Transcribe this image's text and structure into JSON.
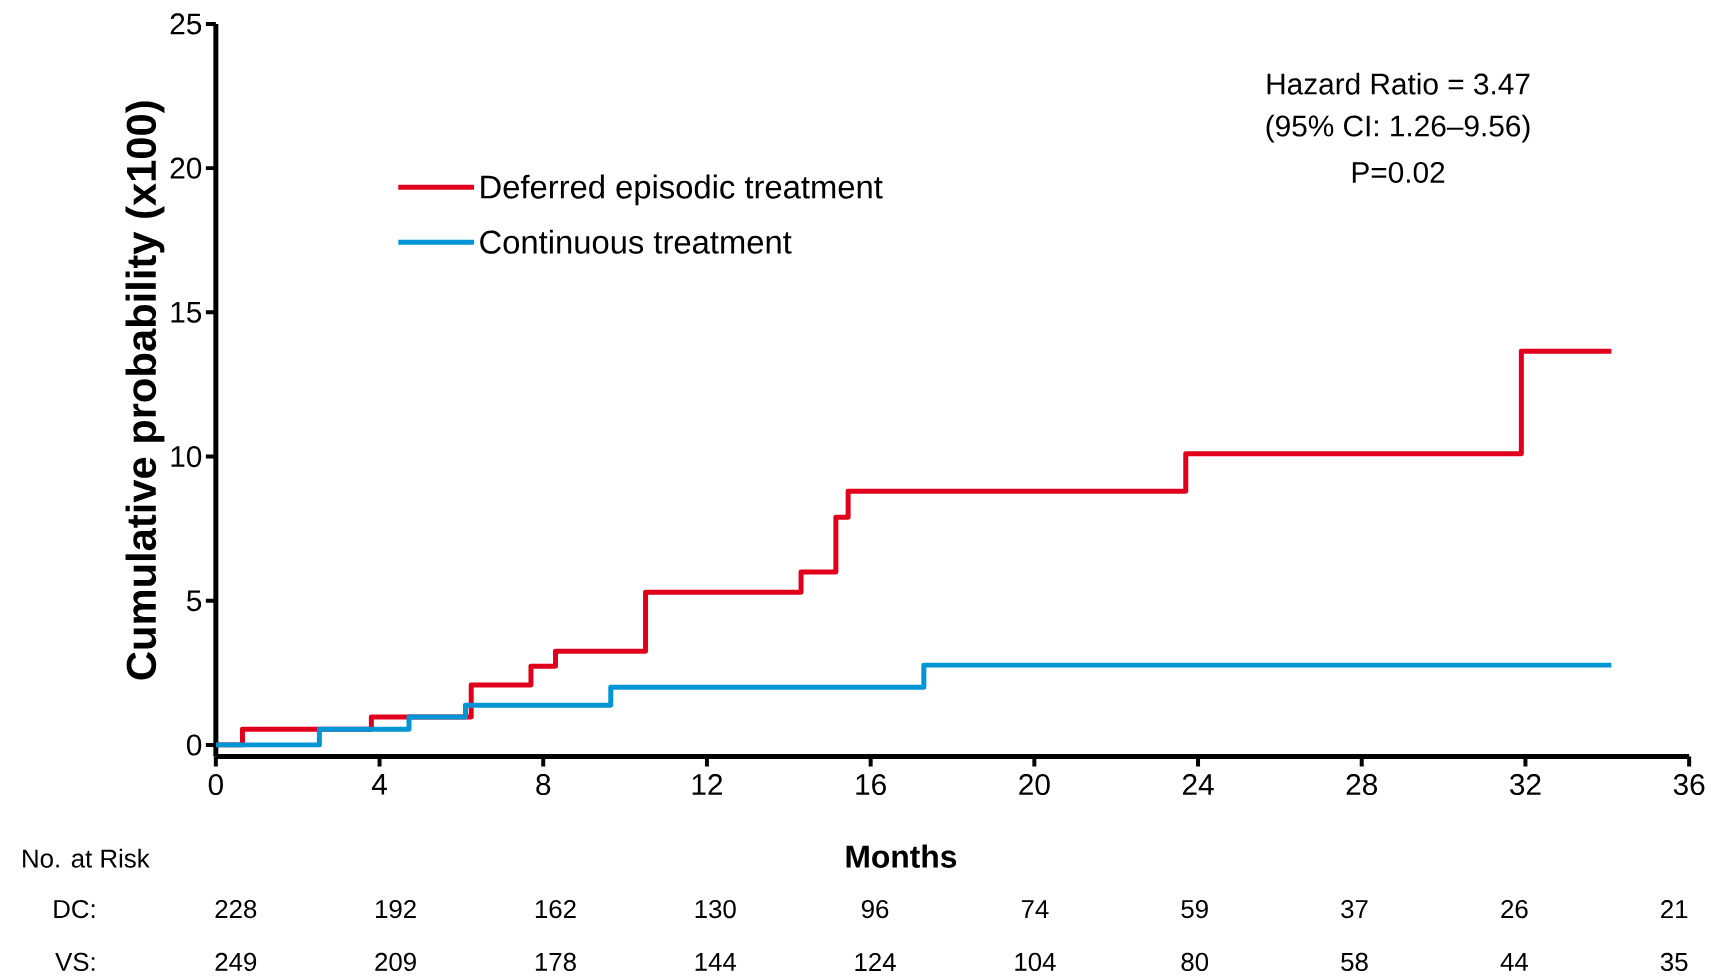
{
  "chart_data": {
    "type": "step",
    "xlabel": "Months",
    "ylabel": "Cumulative probability (x100)",
    "xlim": [
      0,
      36
    ],
    "ylim": [
      -0.4,
      25
    ],
    "xticks": [
      0,
      4,
      8,
      12,
      16,
      20,
      24,
      28,
      32,
      36
    ],
    "yticks": [
      0,
      5,
      10,
      15,
      20,
      25
    ],
    "legend": "top left",
    "grid": false,
    "marker": "none",
    "line_style": "solid",
    "series": [
      {
        "name": "Deferred episodic treatment",
        "color": "#e0001b",
        "x": [
          0,
          0.65,
          3.8,
          6.24,
          7.7,
          8.3,
          10.5,
          14.3,
          15.15,
          15.45,
          23.7,
          31.9,
          34.1
        ],
        "values": [
          0,
          0.55,
          0.97,
          2.08,
          2.73,
          3.25,
          5.3,
          6.0,
          7.9,
          8.8,
          10.1,
          13.65,
          13.65
        ]
      },
      {
        "name": "Continuous treatment",
        "color": "#0096d6",
        "x": [
          0,
          2.53,
          4.72,
          6.1,
          9.65,
          17.3,
          34.1
        ],
        "values": [
          0,
          0.55,
          0.97,
          1.38,
          2.0,
          2.77,
          2.77
        ]
      }
    ],
    "annotations": [
      "Hazard Ratio = 3.47",
      "(95% CI: 1.26–9.56)",
      "P=0.02",
      "No. at Risk",
      "DC:",
      "228",
      "192",
      "162",
      "130",
      "96",
      "74",
      "59",
      "37",
      "26",
      "21",
      "VS:",
      "249",
      "209",
      "178",
      "144",
      "124",
      "104",
      "80",
      "58",
      "44",
      "35"
    ]
  }
}
